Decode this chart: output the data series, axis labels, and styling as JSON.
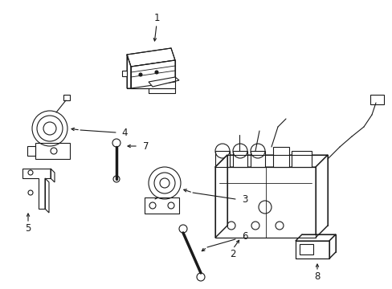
{
  "bg_color": "#ffffff",
  "line_color": "#1a1a1a",
  "line_width": 0.8,
  "label_fontsize": 8.5,
  "fig_width": 4.89,
  "fig_height": 3.6,
  "dpi": 100
}
